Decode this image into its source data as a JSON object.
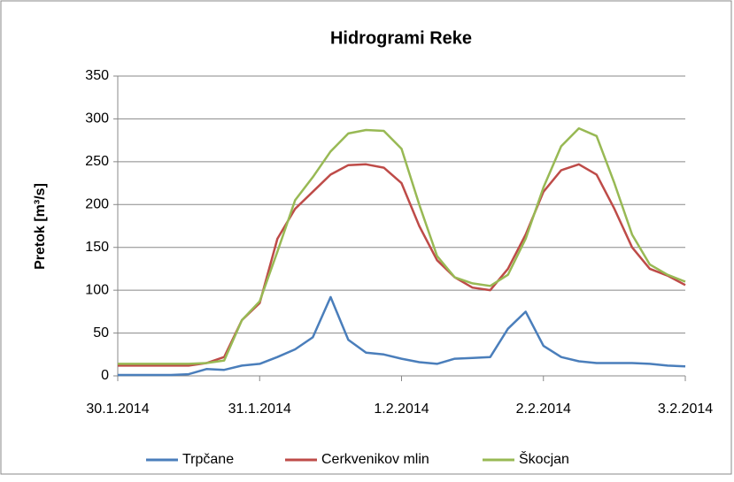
{
  "chart_data": {
    "type": "line",
    "title": "Hidrogrami Reke",
    "y_label": "Pretok [m³/s]",
    "x": [
      0,
      0.125,
      0.25,
      0.375,
      0.5,
      0.625,
      0.75,
      0.875,
      1,
      1.125,
      1.25,
      1.375,
      1.5,
      1.625,
      1.75,
      1.875,
      2,
      2.125,
      2.25,
      2.375,
      2.5,
      2.625,
      2.75,
      2.875,
      3,
      3.125,
      3.25,
      3.375,
      3.5,
      3.625,
      3.75,
      3.875,
      4
    ],
    "xlim": [
      0,
      4
    ],
    "xticks": [
      {
        "value": 0,
        "label": "30.1.2014"
      },
      {
        "value": 1,
        "label": "31.1.2014"
      },
      {
        "value": 2,
        "label": "1.2.2014"
      },
      {
        "value": 3,
        "label": "2.2.2014"
      },
      {
        "value": 4,
        "label": "3.2.2014"
      }
    ],
    "ylim": [
      0,
      350
    ],
    "yticks": [
      0,
      50,
      100,
      150,
      200,
      250,
      300,
      350
    ],
    "grid": true,
    "legend": "bottom",
    "series": [
      {
        "name": "Trpčane",
        "color": "#4a7ebb",
        "values": [
          1,
          1,
          1,
          1,
          2,
          8,
          7,
          12,
          14,
          22,
          31,
          45,
          92,
          42,
          27,
          25,
          20,
          16,
          14,
          20,
          21,
          22,
          55,
          75,
          35,
          22,
          17,
          15,
          15,
          15,
          14,
          12,
          11
        ]
      },
      {
        "name": "Cerkvenikov mlin",
        "color": "#be4b48",
        "values": [
          12,
          12,
          12,
          12,
          12,
          15,
          22,
          65,
          85,
          160,
          195,
          215,
          235,
          246,
          247,
          243,
          225,
          175,
          135,
          115,
          103,
          100,
          125,
          165,
          215,
          240,
          247,
          235,
          195,
          150,
          125,
          117,
          106
        ]
      },
      {
        "name": "Škocjan",
        "color": "#98b954",
        "values": [
          14,
          14,
          14,
          14,
          14,
          15,
          18,
          65,
          87,
          145,
          205,
          232,
          262,
          283,
          287,
          286,
          265,
          200,
          140,
          115,
          108,
          105,
          118,
          160,
          220,
          268,
          289,
          280,
          225,
          165,
          130,
          118,
          110
        ]
      }
    ]
  }
}
